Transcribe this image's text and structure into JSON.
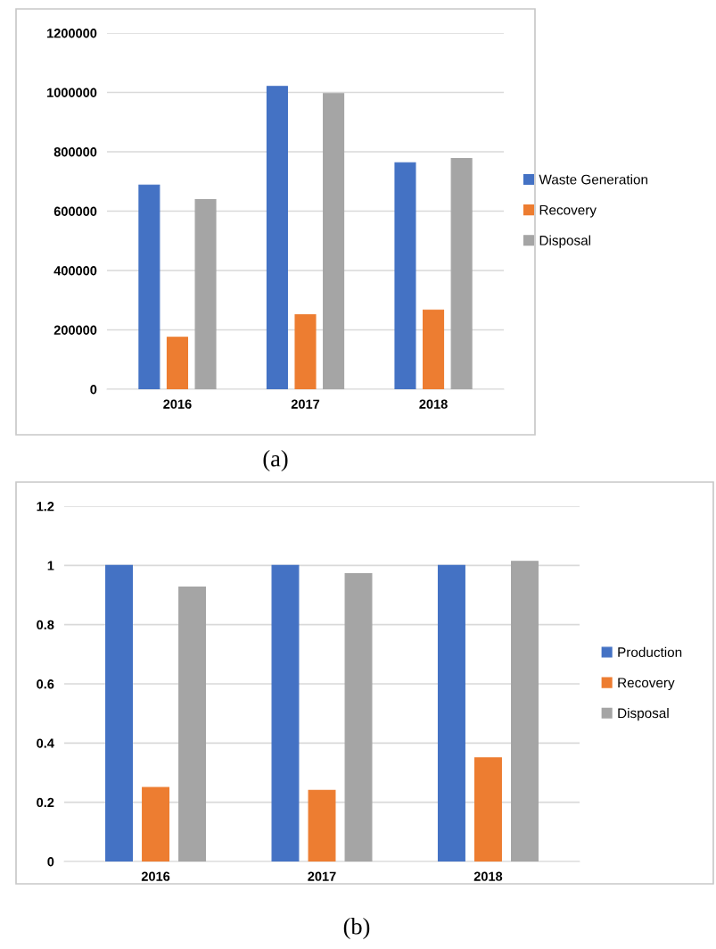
{
  "chart_data": [
    {
      "type": "bar",
      "categories": [
        "2016",
        "2017",
        "2018"
      ],
      "series": [
        {
          "name": "Waste Generation",
          "color": "#4472c4",
          "values": [
            688000,
            1020000,
            763000
          ]
        },
        {
          "name": "Recovery",
          "color": "#ed7d31",
          "values": [
            175000,
            251000,
            267000
          ]
        },
        {
          "name": "Disposal",
          "color": "#a5a5a5",
          "values": [
            639000,
            996000,
            777000
          ]
        }
      ],
      "ylim": [
        0,
        1200000
      ],
      "yticks": [
        0,
        200000,
        400000,
        600000,
        800000,
        1000000,
        1200000
      ],
      "grid": "y",
      "legend": "right",
      "annotations": [
        "(a)"
      ]
    },
    {
      "type": "bar",
      "categories": [
        "2016",
        "2017",
        "2018"
      ],
      "series": [
        {
          "name": "Production",
          "color": "#4472c4",
          "values": [
            1,
            1,
            1
          ]
        },
        {
          "name": "Recovery",
          "color": "#ed7d31",
          "values": [
            0.25,
            0.24,
            0.35
          ]
        },
        {
          "name": "Disposal",
          "color": "#a5a5a5",
          "values": [
            0.927,
            0.972,
            1.014
          ]
        }
      ],
      "ylim": [
        0,
        1.2
      ],
      "yticks": [
        0,
        0.2,
        0.4,
        0.6,
        0.8,
        1,
        1.2
      ],
      "grid": "y",
      "legend": "right",
      "annotations": [
        "(b)"
      ]
    }
  ]
}
